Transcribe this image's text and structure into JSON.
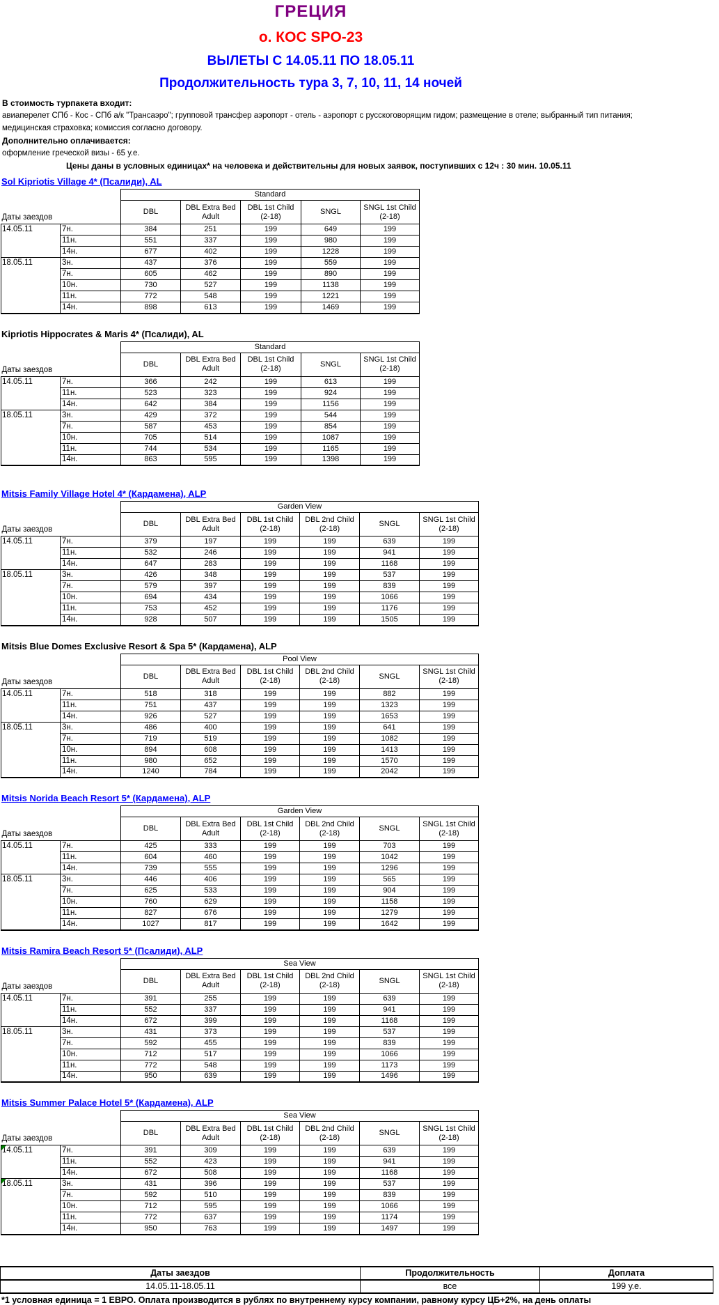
{
  "header": {
    "country": "ГРЕЦИЯ",
    "tour_code": "о. КОС SPO-23",
    "flights": "ВЫЛЕТЫ С 14.05.11 ПО 18.05.11",
    "duration": "Продолжительность тура  3, 7, 10, 11, 14 ночей",
    "included_label": "В стоимость турпакета входит:",
    "included_line1": "авиаперелет СПб - Кос - СПб а/к \"Трансаэро\"; групповой трансфер аэропорт - отель - аэропорт с русскоговорящим гидом; размещение в отеле; выбранный тип питания;",
    "included_line2": "медицинская страховка; комиссия согласно договору.",
    "extra_label": "Дополнительно оплачивается:",
    "extra_line": "оформление греческой визы - 65 у.е.",
    "prices_note": "Цены даны в условных единицах* на человека и действительны для новых заявок, поступивших с 12ч : 30 мин.  10.05.11"
  },
  "labels": {
    "dates_label": "Даты заездов"
  },
  "colors": {
    "country_title": "#800080",
    "tour_code": "#ff0000",
    "headings_blue": "#0000ff",
    "hotel_link": "#0000ff",
    "comment_flag_green": "#008000",
    "text": "#000000",
    "background": "#ffffff"
  },
  "hotels": [
    {
      "name": "Sol Kipriotis Village 4* (Псалиди), AL",
      "link": true,
      "room_type": "Standard",
      "columns": [
        "DBL",
        "DBL Extra Bed Adult",
        "DBL 1st Child (2-18)",
        "SNGL",
        "SNGL 1st Child (2-18)"
      ],
      "groups": [
        {
          "date": "14.05.11",
          "rows": [
            {
              "nights": "7н.",
              "prices": [
                384,
                251,
                199,
                649,
                199
              ]
            },
            {
              "nights": "11н.",
              "prices": [
                551,
                337,
                199,
                980,
                199
              ]
            },
            {
              "nights": "14н.",
              "prices": [
                677,
                402,
                199,
                1228,
                199
              ]
            }
          ]
        },
        {
          "date": "18.05.11",
          "rows": [
            {
              "nights": "3н.",
              "prices": [
                437,
                376,
                199,
                559,
                199
              ]
            },
            {
              "nights": "7н.",
              "prices": [
                605,
                462,
                199,
                890,
                199
              ]
            },
            {
              "nights": "10н.",
              "prices": [
                730,
                527,
                199,
                1138,
                199
              ]
            },
            {
              "nights": "11н.",
              "prices": [
                772,
                548,
                199,
                1221,
                199
              ]
            },
            {
              "nights": "14н.",
              "prices": [
                898,
                613,
                199,
                1469,
                199
              ]
            }
          ]
        }
      ]
    },
    {
      "name": "Kipriotis Hippocrates & Maris 4* (Псалиди), AL",
      "link": false,
      "room_type": "Standard",
      "columns": [
        "DBL",
        "DBL Extra Bed Adult",
        "DBL 1st Child (2-18)",
        "SNGL",
        "SNGL 1st Child (2-18)"
      ],
      "groups": [
        {
          "date": "14.05.11",
          "rows": [
            {
              "nights": "7н.",
              "prices": [
                366,
                242,
                199,
                613,
                199
              ]
            },
            {
              "nights": "11н.",
              "prices": [
                523,
                323,
                199,
                924,
                199
              ]
            },
            {
              "nights": "14н.",
              "prices": [
                642,
                384,
                199,
                1156,
                199
              ]
            }
          ]
        },
        {
          "date": "18.05.11",
          "rows": [
            {
              "nights": "3н.",
              "prices": [
                429,
                372,
                199,
                544,
                199
              ]
            },
            {
              "nights": "7н.",
              "prices": [
                587,
                453,
                199,
                854,
                199
              ]
            },
            {
              "nights": "10н.",
              "prices": [
                705,
                514,
                199,
                1087,
                199
              ]
            },
            {
              "nights": "11н.",
              "prices": [
                744,
                534,
                199,
                1165,
                199
              ]
            },
            {
              "nights": "14н.",
              "prices": [
                863,
                595,
                199,
                1398,
                199
              ]
            }
          ]
        }
      ]
    },
    {
      "name": "Mitsis Family Village Hotel 4* (Кардамена), ALP",
      "link": true,
      "room_type": "Garden View",
      "columns": [
        "DBL",
        "DBL Extra Bed Adult",
        "DBL 1st Child (2-18)",
        "DBL 2nd Child (2-18)",
        "SNGL",
        "SNGL 1st Child (2-18)"
      ],
      "groups": [
        {
          "date": "14.05.11",
          "rows": [
            {
              "nights": "7н.",
              "prices": [
                379,
                197,
                199,
                199,
                639,
                199
              ]
            },
            {
              "nights": "11н.",
              "prices": [
                532,
                246,
                199,
                199,
                941,
                199
              ]
            },
            {
              "nights": "14н.",
              "prices": [
                647,
                283,
                199,
                199,
                1168,
                199
              ]
            }
          ]
        },
        {
          "date": "18.05.11",
          "rows": [
            {
              "nights": "3н.",
              "prices": [
                426,
                348,
                199,
                199,
                537,
                199
              ]
            },
            {
              "nights": "7н.",
              "prices": [
                579,
                397,
                199,
                199,
                839,
                199
              ]
            },
            {
              "nights": "10н.",
              "prices": [
                694,
                434,
                199,
                199,
                1066,
                199
              ]
            },
            {
              "nights": "11н.",
              "prices": [
                753,
                452,
                199,
                199,
                1176,
                199
              ]
            },
            {
              "nights": "14н.",
              "prices": [
                928,
                507,
                199,
                199,
                1505,
                199
              ]
            }
          ]
        }
      ]
    },
    {
      "name": "Mitsis Blue Domes Exclusive Resort & Spa 5* (Кардамена), ALP",
      "link": false,
      "room_type": "Pool View",
      "columns": [
        "DBL",
        "DBL Extra Bed Adult",
        "DBL 1st Child (2-18)",
        "DBL 2nd Child (2-18)",
        "SNGL",
        "SNGL 1st Child (2-18)"
      ],
      "groups": [
        {
          "date": "14.05.11",
          "rows": [
            {
              "nights": "7н.",
              "prices": [
                518,
                318,
                199,
                199,
                882,
                199
              ]
            },
            {
              "nights": "11н.",
              "prices": [
                751,
                437,
                199,
                199,
                1323,
                199
              ]
            },
            {
              "nights": "14н.",
              "prices": [
                926,
                527,
                199,
                199,
                1653,
                199
              ]
            }
          ]
        },
        {
          "date": "18.05.11",
          "rows": [
            {
              "nights": "3н.",
              "prices": [
                486,
                400,
                199,
                199,
                641,
                199
              ]
            },
            {
              "nights": "7н.",
              "prices": [
                719,
                519,
                199,
                199,
                1082,
                199
              ]
            },
            {
              "nights": "10н.",
              "prices": [
                894,
                608,
                199,
                199,
                1413,
                199
              ]
            },
            {
              "nights": "11н.",
              "prices": [
                980,
                652,
                199,
                199,
                1570,
                199
              ]
            },
            {
              "nights": "14н.",
              "prices": [
                1240,
                784,
                199,
                199,
                2042,
                199
              ]
            }
          ]
        }
      ]
    },
    {
      "name": "Mitsis Norida Beach Resort 5* (Кардамена), ALP",
      "link": true,
      "room_type": "Garden View",
      "columns": [
        "DBL",
        "DBL Extra Bed Adult",
        "DBL 1st Child (2-18)",
        "DBL 2nd Child (2-18)",
        "SNGL",
        "SNGL 1st Child (2-18)"
      ],
      "groups": [
        {
          "date": "14.05.11",
          "rows": [
            {
              "nights": "7н.",
              "prices": [
                425,
                333,
                199,
                199,
                703,
                199
              ]
            },
            {
              "nights": "11н.",
              "prices": [
                604,
                460,
                199,
                199,
                1042,
                199
              ]
            },
            {
              "nights": "14н.",
              "prices": [
                739,
                555,
                199,
                199,
                1296,
                199
              ]
            }
          ]
        },
        {
          "date": "18.05.11",
          "rows": [
            {
              "nights": "3н.",
              "prices": [
                446,
                406,
                199,
                199,
                565,
                199
              ]
            },
            {
              "nights": "7н.",
              "prices": [
                625,
                533,
                199,
                199,
                904,
                199
              ]
            },
            {
              "nights": "10н.",
              "prices": [
                760,
                629,
                199,
                199,
                1158,
                199
              ]
            },
            {
              "nights": "11н.",
              "prices": [
                827,
                676,
                199,
                199,
                1279,
                199
              ]
            },
            {
              "nights": "14н.",
              "prices": [
                1027,
                817,
                199,
                199,
                1642,
                199
              ]
            }
          ]
        }
      ]
    },
    {
      "name": "Mitsis Ramira Beach Resort 5* (Псалиди), ALP",
      "link": true,
      "room_type": "Sea View",
      "columns": [
        "DBL",
        "DBL Extra Bed Adult",
        "DBL 1st Child (2-18)",
        "DBL 2nd Child (2-18)",
        "SNGL",
        "SNGL 1st Child (2-18)"
      ],
      "groups": [
        {
          "date": "14.05.11",
          "rows": [
            {
              "nights": "7н.",
              "prices": [
                391,
                255,
                199,
                199,
                639,
                199
              ]
            },
            {
              "nights": "11н.",
              "prices": [
                552,
                337,
                199,
                199,
                941,
                199
              ]
            },
            {
              "nights": "14н.",
              "prices": [
                672,
                399,
                199,
                199,
                1168,
                199
              ]
            }
          ]
        },
        {
          "date": "18.05.11",
          "rows": [
            {
              "nights": "3н.",
              "prices": [
                431,
                373,
                199,
                199,
                537,
                199
              ]
            },
            {
              "nights": "7н.",
              "prices": [
                592,
                455,
                199,
                199,
                839,
                199
              ]
            },
            {
              "nights": "10н.",
              "prices": [
                712,
                517,
                199,
                199,
                1066,
                199
              ]
            },
            {
              "nights": "11н.",
              "prices": [
                772,
                548,
                199,
                199,
                1173,
                199
              ]
            },
            {
              "nights": "14н.",
              "prices": [
                950,
                639,
                199,
                199,
                1496,
                199
              ]
            }
          ]
        }
      ]
    },
    {
      "name": "Mitsis Summer Palace Hotel 5* (Кардамена), ALP",
      "link": true,
      "room_type": "Sea View",
      "columns": [
        "DBL",
        "DBL Extra Bed Adult",
        "DBL 1st Child (2-18)",
        "DBL 2nd Child (2-18)",
        "SNGL",
        "SNGL 1st Child (2-18)"
      ],
      "groups": [
        {
          "date": "14.05.11",
          "flag": true,
          "rows": [
            {
              "nights": "7н.",
              "prices": [
                391,
                309,
                199,
                199,
                639,
                199
              ]
            },
            {
              "nights": "11н.",
              "prices": [
                552,
                423,
                199,
                199,
                941,
                199
              ]
            },
            {
              "nights": "14н.",
              "prices": [
                672,
                508,
                199,
                199,
                1168,
                199
              ]
            }
          ]
        },
        {
          "date": "18.05.11",
          "flag": true,
          "rows": [
            {
              "nights": "3н.",
              "prices": [
                431,
                396,
                199,
                199,
                537,
                199
              ]
            },
            {
              "nights": "7н.",
              "prices": [
                592,
                510,
                199,
                199,
                839,
                199
              ]
            },
            {
              "nights": "10н.",
              "prices": [
                712,
                595,
                199,
                199,
                1066,
                199
              ]
            },
            {
              "nights": "11н.",
              "prices": [
                772,
                637,
                199,
                199,
                1174,
                199
              ]
            },
            {
              "nights": "14н.",
              "prices": [
                950,
                763,
                199,
                199,
                1497,
                199
              ]
            }
          ]
        }
      ]
    }
  ],
  "summary": {
    "headers": [
      "Даты заездов",
      "Продолжительность",
      "Доплата"
    ],
    "values": [
      "14.05.11-18.05.11",
      "все",
      "199 у.е."
    ]
  },
  "footer": {
    "note": "*1 условная единица = 1 ЕВРО. Оплата производится в рублях по внутреннему курсу компании, равному курсу ЦБ+2%, на день оплаты"
  }
}
